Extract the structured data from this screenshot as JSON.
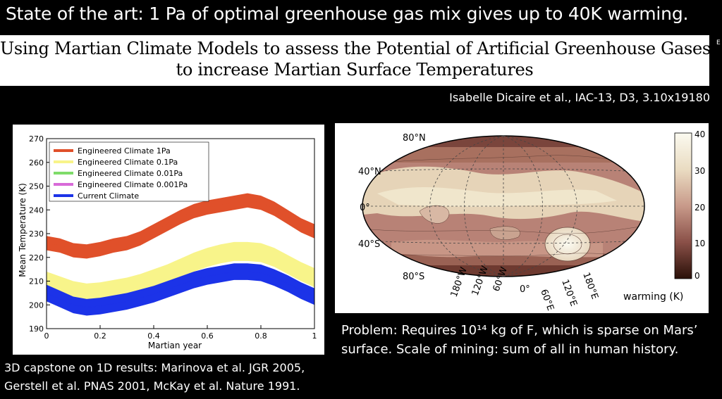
{
  "slide": {
    "title": "State of the art: 1 Pa of optimal greenhouse gas mix gives up to 40K warming.",
    "paper_title_line1": "Using Martian Climate Models to assess the Potential of Artificial Greenhouse Gases",
    "paper_title_line2": "to increase Martian Surface Temperatures",
    "citation": "Isabelle Dicaire et al., IAC-13, D3, 3.10x19180",
    "side_mark": "E",
    "problem_text": "Problem: Requires 10¹⁴ kg of F, which is sparse on Mars’ surface. Scale of mining: sum of all in human history.",
    "capstone_text": "3D capstone on 1D results: Marinova et al. JGR 2005, Gerstell et al. PNAS 2001, McKay et al. Nature 1991."
  },
  "colors": {
    "slide_background": "#000000",
    "red": "#e0502a",
    "yellow": "#f8f48a",
    "green": "#7fdc6a",
    "magenta": "#d86ad8",
    "blue": "#1c33e8"
  },
  "chart_data": [
    {
      "type": "line",
      "title": "",
      "xlabel": "Martian year",
      "ylabel": "Mean Temperature (K)",
      "xlim": [
        0,
        1
      ],
      "ylim": [
        190,
        270
      ],
      "x_ticks": [
        "0",
        "0.2",
        "0.4",
        "0.6",
        "0.8",
        "1"
      ],
      "y_ticks": [
        "190",
        "200",
        "210",
        "220",
        "230",
        "240",
        "250",
        "260",
        "270"
      ],
      "legend_position": "top-left",
      "x": [
        0,
        0.05,
        0.1,
        0.15,
        0.2,
        0.25,
        0.3,
        0.35,
        0.4,
        0.45,
        0.5,
        0.55,
        0.6,
        0.65,
        0.7,
        0.75,
        0.8,
        0.85,
        0.9,
        0.95,
        1.0
      ],
      "series": [
        {
          "name": "Engineered Climate 1Pa",
          "color": "#e0502a",
          "band": 3,
          "values": [
            226,
            225,
            223,
            222.5,
            223.5,
            225,
            226,
            228,
            231,
            234,
            237,
            239.5,
            241,
            242,
            243,
            244,
            243,
            240.5,
            237,
            233.5,
            231
          ]
        },
        {
          "name": "Engineered Climate 0.1Pa",
          "color": "#f8f48a",
          "band": 4,
          "values": [
            210,
            208,
            206,
            205,
            205.5,
            206.5,
            207.5,
            209,
            211,
            213,
            215.5,
            218,
            220,
            221.5,
            222.5,
            222.5,
            222,
            220,
            217,
            214,
            211.5
          ]
        },
        {
          "name": "Engineered Climate 0.01Pa",
          "color": "#7fdc6a",
          "band": 1.2,
          "values": [
            207,
            204.5,
            202,
            201,
            201.5,
            202.5,
            203.5,
            205,
            206.5,
            208.5,
            210.5,
            212.5,
            214,
            215,
            216,
            216,
            215.5,
            213.5,
            211,
            208,
            205.5
          ]
        },
        {
          "name": "Engineered Climate 0.001Pa",
          "color": "#d86ad8",
          "band": 1,
          "values": [
            206.5,
            204,
            201.5,
            200.5,
            201,
            202,
            203,
            204.5,
            206,
            208,
            210,
            212,
            213.5,
            214.5,
            215.5,
            215.5,
            215,
            213,
            210.5,
            207.5,
            205
          ]
        },
        {
          "name": "Current Climate",
          "color": "#1c33e8",
          "band": 3.5,
          "values": [
            205,
            202.5,
            200,
            199,
            199.5,
            200.5,
            201.5,
            203,
            204.5,
            206.5,
            208.5,
            210.5,
            212,
            213,
            214,
            214,
            213.5,
            211.5,
            209,
            206,
            203.5
          ]
        }
      ]
    },
    {
      "type": "heatmap",
      "title": "",
      "colorbar_label": "warming (K)",
      "colorbar_ticks": [
        "0",
        "10",
        "20",
        "30",
        "40"
      ],
      "colorbar_range": [
        0,
        40
      ],
      "lat_labels": [
        "80°N",
        "40°N",
        "0°",
        "40°S",
        "80°S"
      ],
      "lon_labels": [
        "180°W",
        "120°W",
        "60°W",
        "0°",
        "60°E",
        "120°E",
        "180°E"
      ]
    }
  ]
}
